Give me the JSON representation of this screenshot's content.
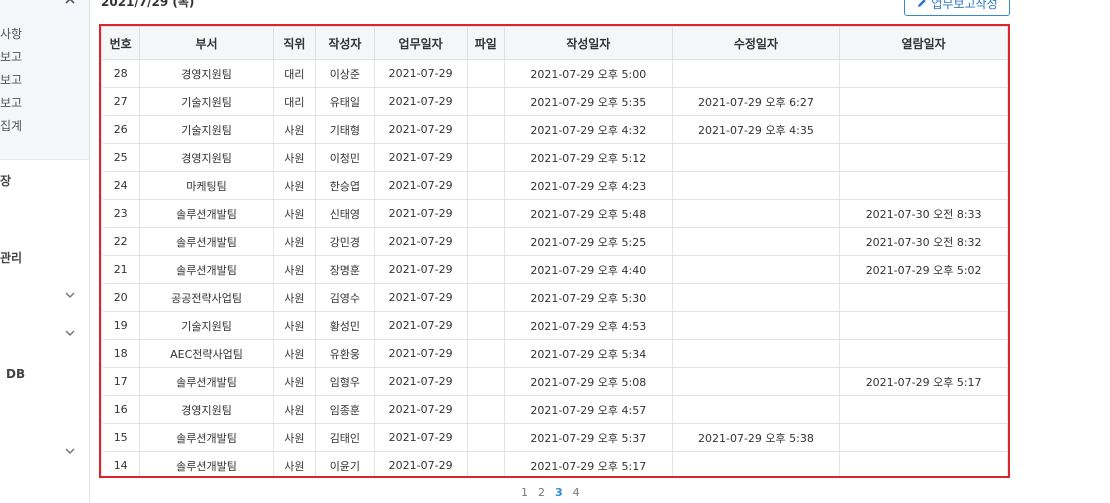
{
  "sidebar": {
    "sub_items": [
      "사항",
      "보고",
      "보고",
      "보고",
      "집계"
    ],
    "sections": [
      "장",
      "관리",
      "DB"
    ]
  },
  "header": {
    "date": "2021/7/29 (목)",
    "write_button": "업무보고작성"
  },
  "table": {
    "columns": [
      "번호",
      "부서",
      "직위",
      "작성자",
      "업무일자",
      "파일",
      "작성일자",
      "수정일자",
      "열람일자"
    ],
    "rows": [
      [
        "28",
        "경영지원팀",
        "대리",
        "이상준",
        "2021-07-29",
        "",
        "2021-07-29 오후 5:00",
        "",
        ""
      ],
      [
        "27",
        "기술지원팀",
        "대리",
        "유태일",
        "2021-07-29",
        "",
        "2021-07-29 오후 5:35",
        "2021-07-29 오후 6:27",
        ""
      ],
      [
        "26",
        "기술지원팀",
        "사원",
        "기태형",
        "2021-07-29",
        "",
        "2021-07-29 오후 4:32",
        "2021-07-29 오후 4:35",
        ""
      ],
      [
        "25",
        "경영지원팀",
        "사원",
        "이청민",
        "2021-07-29",
        "",
        "2021-07-29 오후 5:12",
        "",
        ""
      ],
      [
        "24",
        "마케팅팀",
        "사원",
        "한승엽",
        "2021-07-29",
        "",
        "2021-07-29 오후 4:23",
        "",
        ""
      ],
      [
        "23",
        "솔루션개발팀",
        "사원",
        "신태영",
        "2021-07-29",
        "",
        "2021-07-29 오후 5:48",
        "",
        "2021-07-30 오전 8:33"
      ],
      [
        "22",
        "솔루션개발팀",
        "사원",
        "강민경",
        "2021-07-29",
        "",
        "2021-07-29 오후 5:25",
        "",
        "2021-07-30 오전 8:32"
      ],
      [
        "21",
        "솔루션개발팀",
        "사원",
        "장명훈",
        "2021-07-29",
        "",
        "2021-07-29 오후 4:40",
        "",
        "2021-07-29 오후 5:02"
      ],
      [
        "20",
        "공공전략사업팀",
        "사원",
        "김영수",
        "2021-07-29",
        "",
        "2021-07-29 오후 5:30",
        "",
        ""
      ],
      [
        "19",
        "기술지원팀",
        "사원",
        "황성민",
        "2021-07-29",
        "",
        "2021-07-29 오후 4:53",
        "",
        ""
      ],
      [
        "18",
        "AEC전략사업팀",
        "사원",
        "유환웅",
        "2021-07-29",
        "",
        "2021-07-29 오후 5:34",
        "",
        ""
      ],
      [
        "17",
        "솔루션개발팀",
        "사원",
        "임형우",
        "2021-07-29",
        "",
        "2021-07-29 오후 5:08",
        "",
        "2021-07-29 오후 5:17"
      ],
      [
        "16",
        "경영지원팀",
        "사원",
        "임종훈",
        "2021-07-29",
        "",
        "2021-07-29 오후 4:57",
        "",
        ""
      ],
      [
        "15",
        "솔루션개발팀",
        "사원",
        "김태인",
        "2021-07-29",
        "",
        "2021-07-29 오후 5:37",
        "2021-07-29 오후 5:38",
        ""
      ],
      [
        "14",
        "솔루션개발팀",
        "사원",
        "이윤기",
        "2021-07-29",
        "",
        "2021-07-29 오후 5:17",
        "",
        ""
      ]
    ]
  },
  "pagination": {
    "pages": [
      "1",
      "2",
      "3",
      "4"
    ],
    "current": "3"
  },
  "colors": {
    "highlight_border": "#d9262e",
    "accent": "#2b8fd8"
  }
}
